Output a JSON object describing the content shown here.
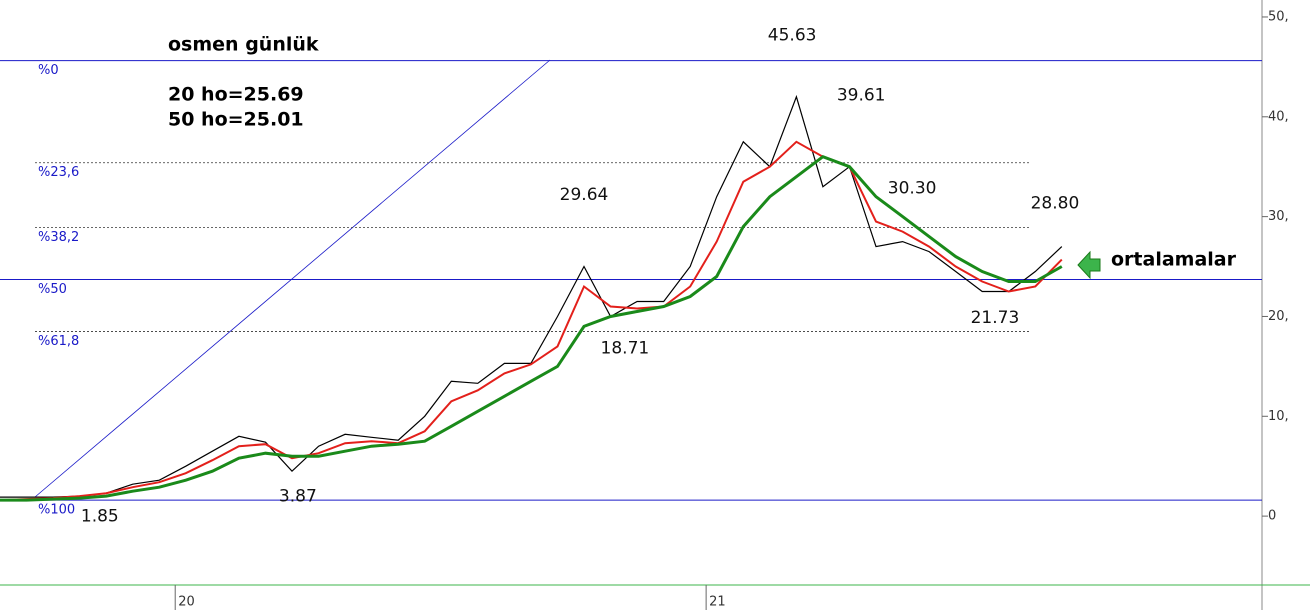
{
  "chart_data": {
    "type": "line",
    "title": "osmen günlük",
    "legend_lines": [
      "20 ho=25.69",
      "50 ho=25.01"
    ],
    "callout": "ortalamalar",
    "x": [
      2019.67,
      2019.72,
      2019.77,
      2019.82,
      2019.87,
      2019.92,
      2019.97,
      2020.02,
      2020.07,
      2020.12,
      2020.17,
      2020.22,
      2020.27,
      2020.32,
      2020.37,
      2020.42,
      2020.47,
      2020.52,
      2020.57,
      2020.62,
      2020.67,
      2020.72,
      2020.77,
      2020.82,
      2020.87,
      2020.92,
      2020.97,
      2021.02,
      2021.07,
      2021.12,
      2021.17,
      2021.22,
      2021.27,
      2021.32,
      2021.37,
      2021.42,
      2021.47,
      2021.52,
      2021.57,
      2021.62,
      2021.67
    ],
    "series": [
      {
        "color": "#000000",
        "values": [
          1.9,
          1.9,
          1.9,
          2.0,
          2.3,
          3.2,
          3.6,
          5.0,
          6.5,
          8.0,
          7.4,
          4.5,
          7.0,
          8.2,
          7.9,
          7.6,
          10.0,
          13.5,
          13.3,
          15.3,
          15.3,
          20.0,
          25.0,
          20.0,
          21.5,
          21.5,
          25.0,
          32.0,
          37.5,
          35.0,
          42.0,
          33.0,
          35.0,
          27.0,
          27.5,
          26.5,
          24.5,
          22.5,
          22.5,
          24.5,
          27.0
        ]
      },
      {
        "color": "#e3201b",
        "values": [
          1.6,
          1.7,
          1.8,
          2.0,
          2.3,
          2.9,
          3.4,
          4.3,
          5.6,
          7.0,
          7.2,
          5.8,
          6.3,
          7.3,
          7.5,
          7.3,
          8.5,
          11.5,
          12.6,
          14.3,
          15.2,
          17.0,
          23.0,
          21.0,
          20.8,
          21.0,
          23.0,
          27.5,
          33.5,
          35.0,
          37.5,
          36.0,
          35.0,
          29.5,
          28.5,
          27.0,
          25.0,
          23.5,
          22.5,
          23.0,
          25.7
        ]
      },
      {
        "color": "#1a8a1a",
        "values": [
          1.6,
          1.6,
          1.7,
          1.8,
          2.0,
          2.5,
          2.9,
          3.6,
          4.5,
          5.8,
          6.3,
          6.0,
          6.0,
          6.5,
          7.0,
          7.2,
          7.5,
          9.0,
          10.5,
          12.0,
          13.5,
          15.0,
          19.0,
          20.0,
          20.5,
          21.0,
          22.0,
          24.0,
          29.0,
          32.0,
          34.0,
          36.0,
          35.0,
          32.0,
          30.0,
          28.0,
          26.0,
          24.5,
          23.5,
          23.5,
          25.0
        ]
      }
    ],
    "fib_levels": [
      {
        "label": "%0",
        "value": 45.63,
        "style": "solid"
      },
      {
        "label": "%23,6",
        "value": 35.4,
        "style": "dotted"
      },
      {
        "label": "%38,2",
        "value": 28.9,
        "style": "dotted"
      },
      {
        "label": "%50",
        "value": 23.7,
        "style": "solid"
      },
      {
        "label": "%61,8",
        "value": 18.5,
        "style": "dotted"
      },
      {
        "label": "%100",
        "value": 1.6,
        "style": "solid"
      }
    ],
    "annotations": [
      {
        "label": "1.85",
        "value": 1.85,
        "x": 2019.858
      },
      {
        "label": "3.87",
        "value": 3.87,
        "x": 2020.231
      },
      {
        "label": "29.64",
        "value": 29.64,
        "x": 2020.77
      },
      {
        "label": "18.71",
        "value": 18.71,
        "x": 2020.847
      },
      {
        "label": "45.63",
        "value": 45.63,
        "x": 2021.162
      },
      {
        "label": "39.61",
        "value": 39.61,
        "x": 2021.292
      },
      {
        "label": "30.30",
        "value": 30.3,
        "x": 2021.388
      },
      {
        "label": "21.73",
        "value": 21.73,
        "x": 2021.544
      },
      {
        "label": "28.80",
        "value": 28.8,
        "x": 2021.657
      }
    ],
    "xlim": [
      2019.67,
      2022.047
    ],
    "xticks": [
      {
        "value": 2020,
        "label": "20"
      },
      {
        "value": 2021,
        "label": "21"
      }
    ],
    "ylim": [
      -6.7,
      51.7
    ],
    "yticks": [
      0,
      {
        "value": 10,
        "label": "10,"
      },
      {
        "value": 20,
        "label": "20,"
      },
      {
        "value": 30,
        "label": "30,"
      },
      {
        "value": 40,
        "label": "40,"
      },
      {
        "value": 50,
        "label": "50,"
      }
    ]
  }
}
